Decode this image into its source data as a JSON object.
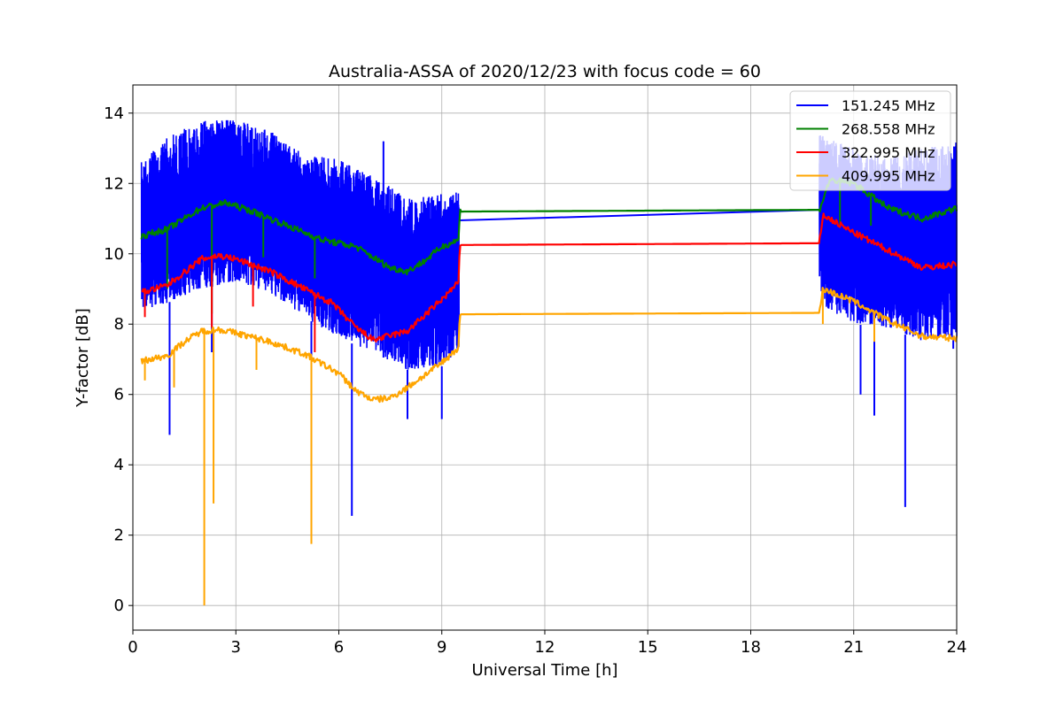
{
  "chart_data": {
    "type": "line",
    "title": "Australia-ASSA of 2020/12/23 with focus code = 60",
    "xlabel": "Universal Time [h]",
    "ylabel": "Y-factor [dB]",
    "xlim": [
      0,
      24
    ],
    "ylim": [
      -0.7,
      14.8
    ],
    "xticks": [
      0,
      3,
      6,
      9,
      12,
      15,
      18,
      21,
      24
    ],
    "yticks": [
      0,
      2,
      4,
      6,
      8,
      10,
      12,
      14
    ],
    "grid": true,
    "legend_position": "top-right",
    "series": [
      {
        "name": "151.245 MHz",
        "color": "#0000ff",
        "envelope_max": [
          [
            0.25,
            12.6
          ],
          [
            1.0,
            13.3
          ],
          [
            2.0,
            13.8
          ],
          [
            3.0,
            13.8
          ],
          [
            4.0,
            13.5
          ],
          [
            5.0,
            12.8
          ],
          [
            6.0,
            12.7
          ],
          [
            7.0,
            12.2
          ],
          [
            8.0,
            11.6
          ],
          [
            9.0,
            11.7
          ],
          [
            9.5,
            11.8
          ],
          [
            20.0,
            13.4
          ],
          [
            21.0,
            13.0
          ],
          [
            22.0,
            12.7
          ],
          [
            23.0,
            13.0
          ],
          [
            24.0,
            13.2
          ]
        ],
        "envelope_min": [
          [
            0.25,
            8.4
          ],
          [
            1.0,
            8.6
          ],
          [
            2.0,
            9.0
          ],
          [
            3.0,
            9.2
          ],
          [
            4.0,
            8.9
          ],
          [
            5.0,
            8.2
          ],
          [
            6.0,
            7.6
          ],
          [
            7.0,
            7.2
          ],
          [
            8.0,
            6.7
          ],
          [
            9.0,
            6.8
          ],
          [
            9.5,
            7.3
          ],
          [
            20.0,
            8.6
          ],
          [
            21.0,
            8.0
          ],
          [
            22.0,
            7.9
          ],
          [
            23.0,
            7.5
          ],
          [
            24.0,
            7.6
          ]
        ],
        "gap_line": [
          [
            9.5,
            10.95
          ],
          [
            20.0,
            11.25
          ]
        ],
        "spikes": [
          [
            1.07,
            4.85
          ],
          [
            2.3,
            7.2
          ],
          [
            5.2,
            6.1
          ],
          [
            6.38,
            2.55
          ],
          [
            7.3,
            13.2
          ],
          [
            8.0,
            5.3
          ],
          [
            9.0,
            5.3
          ],
          [
            21.2,
            6.0
          ],
          [
            21.6,
            5.4
          ],
          [
            22.5,
            2.8
          ],
          [
            23.9,
            7.3
          ]
        ]
      },
      {
        "name": "268.558 MHz",
        "color": "#008000",
        "points": [
          [
            0.25,
            10.5
          ],
          [
            1.0,
            10.7
          ],
          [
            2.0,
            11.3
          ],
          [
            2.7,
            11.45
          ],
          [
            3.5,
            11.2
          ],
          [
            4.5,
            10.8
          ],
          [
            5.5,
            10.4
          ],
          [
            6.5,
            10.2
          ],
          [
            7.5,
            9.6
          ],
          [
            8.0,
            9.5
          ],
          [
            8.5,
            9.8
          ],
          [
            9.0,
            10.2
          ],
          [
            9.5,
            10.4
          ],
          [
            9.52,
            11.2
          ],
          [
            20.0,
            11.25
          ],
          [
            20.3,
            12.1
          ],
          [
            21.0,
            12.0
          ],
          [
            22.0,
            11.3
          ],
          [
            23.0,
            11.0
          ],
          [
            24.0,
            11.3
          ]
        ],
        "spikes": [
          [
            1.0,
            9.0
          ],
          [
            2.3,
            8.3
          ],
          [
            3.8,
            9.9
          ],
          [
            5.3,
            9.3
          ],
          [
            20.6,
            10.8
          ],
          [
            21.5,
            10.8
          ]
        ]
      },
      {
        "name": "322.995 MHz",
        "color": "#ff0000",
        "points": [
          [
            0.25,
            8.9
          ],
          [
            1.0,
            9.1
          ],
          [
            2.0,
            9.85
          ],
          [
            2.5,
            9.95
          ],
          [
            3.0,
            9.85
          ],
          [
            4.0,
            9.5
          ],
          [
            5.0,
            9.0
          ],
          [
            5.8,
            8.6
          ],
          [
            6.5,
            7.9
          ],
          [
            7.0,
            7.55
          ],
          [
            8.0,
            7.8
          ],
          [
            9.0,
            8.7
          ],
          [
            9.5,
            9.2
          ],
          [
            9.52,
            10.25
          ],
          [
            20.0,
            10.3
          ],
          [
            20.1,
            11.1
          ],
          [
            21.0,
            10.6
          ],
          [
            22.0,
            10.1
          ],
          [
            23.0,
            9.6
          ],
          [
            24.0,
            9.7
          ]
        ],
        "spikes": [
          [
            0.35,
            8.2
          ],
          [
            2.3,
            7.9
          ],
          [
            3.5,
            8.5
          ],
          [
            5.3,
            7.2
          ]
        ]
      },
      {
        "name": "409.995 MHz",
        "color": "#ffa500",
        "points": [
          [
            0.25,
            6.95
          ],
          [
            1.0,
            7.1
          ],
          [
            1.5,
            7.5
          ],
          [
            2.0,
            7.8
          ],
          [
            2.5,
            7.85
          ],
          [
            3.0,
            7.75
          ],
          [
            4.0,
            7.5
          ],
          [
            5.0,
            7.15
          ],
          [
            6.0,
            6.6
          ],
          [
            6.5,
            6.1
          ],
          [
            7.0,
            5.85
          ],
          [
            7.5,
            5.9
          ],
          [
            8.0,
            6.2
          ],
          [
            9.0,
            6.9
          ],
          [
            9.5,
            7.35
          ],
          [
            9.52,
            8.28
          ],
          [
            20.0,
            8.32
          ],
          [
            20.1,
            9.0
          ],
          [
            21.0,
            8.65
          ],
          [
            22.0,
            8.1
          ],
          [
            23.0,
            7.65
          ],
          [
            24.0,
            7.6
          ]
        ],
        "spikes": [
          [
            0.35,
            6.4
          ],
          [
            1.2,
            6.2
          ],
          [
            2.08,
            0.0
          ],
          [
            2.35,
            2.9
          ],
          [
            3.6,
            6.7
          ],
          [
            5.2,
            1.75
          ],
          [
            20.1,
            8.0
          ],
          [
            21.6,
            7.5
          ]
        ]
      }
    ]
  }
}
